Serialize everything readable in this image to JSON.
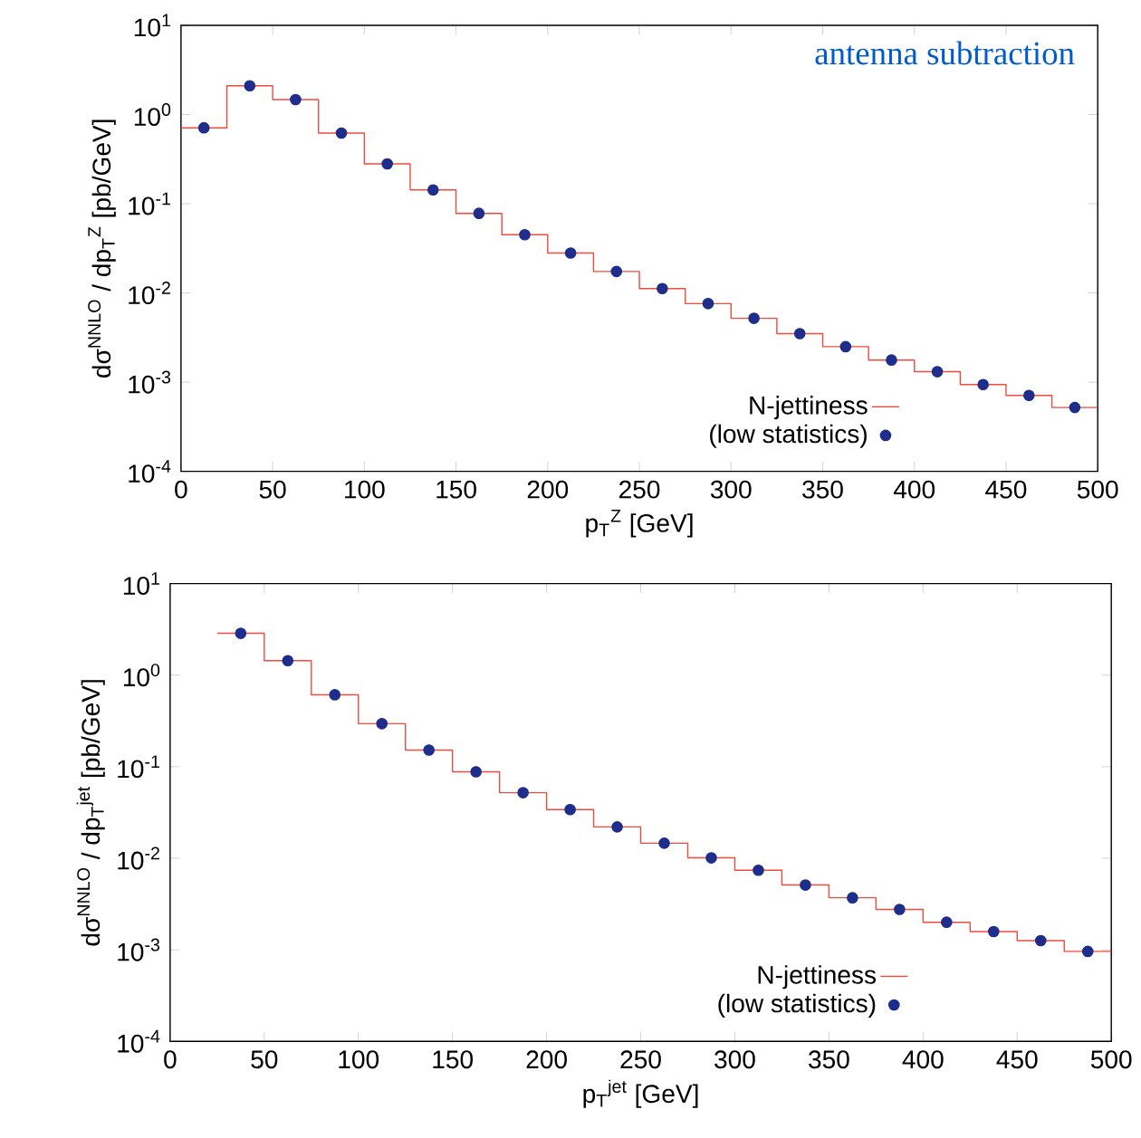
{
  "chart_data": [
    {
      "type": "step",
      "xlabel": "p$_{T}$$^{Z}$ [GeV]",
      "ylabel": "dσ$^{NNLO}$ / dp$_{T}$$^{Z}$ [pb/GeV]",
      "annotations": [
        "antenna subtraction"
      ],
      "log": "y",
      "xlim": [
        0,
        500
      ],
      "ylim": [
        0.0001,
        10
      ],
      "xticks": [
        0,
        50,
        100,
        150,
        200,
        250,
        300,
        350,
        400,
        450,
        500
      ],
      "yticks": [
        {
          "value": 0.0001,
          "label": "10$^{-4}$"
        },
        {
          "value": 0.001,
          "label": "10$^{-3}$"
        },
        {
          "value": 0.01,
          "label": "10$^{-2}$"
        },
        {
          "value": 0.1,
          "label": "10$^{-1}$"
        },
        {
          "value": 1,
          "label": "10$^{0}$"
        },
        {
          "value": 10,
          "label": "10$^{1}$"
        }
      ],
      "legend": "bottom right",
      "grid": false,
      "series": [
        {
          "name": "N-jettiness",
          "type": "histogram",
          "color": "#f04b3c",
          "bins": [
            0,
            25,
            50,
            75,
            100,
            125,
            150,
            175,
            200,
            225,
            250,
            275,
            300,
            325,
            350,
            375,
            400,
            425,
            450,
            475,
            500
          ],
          "values": [
            0.71,
            2.1,
            1.47,
            0.62,
            0.28,
            0.143,
            0.078,
            0.045,
            0.028,
            0.0174,
            0.0112,
            0.0076,
            0.0052,
            0.0035,
            0.0025,
            0.00177,
            0.00131,
            0.00094,
            0.00071,
            0.00052
          ]
        },
        {
          "name": "(low statistics)",
          "type": "scatter",
          "marker": "circle",
          "color": "#1f2d8c",
          "x": [
            12.5,
            37.5,
            62.5,
            87.5,
            112.5,
            137.5,
            162.5,
            187.5,
            212.5,
            237.5,
            262.5,
            287.5,
            312.5,
            337.5,
            362.5,
            387.5,
            412.5,
            437.5,
            462.5,
            487.5
          ],
          "values": [
            0.71,
            2.1,
            1.47,
            0.62,
            0.28,
            0.143,
            0.078,
            0.045,
            0.028,
            0.0174,
            0.0112,
            0.0076,
            0.0052,
            0.0035,
            0.0025,
            0.00177,
            0.00131,
            0.00094,
            0.00071,
            0.00052
          ]
        }
      ]
    },
    {
      "type": "step",
      "xlabel": "p$_{T}$$^{jet}$ [GeV]",
      "ylabel": "dσ$^{NNLO}$ / dp$_{T}$$^{jet}$ [pb/GeV]",
      "log": "y",
      "xlim": [
        0,
        500
      ],
      "ylim": [
        0.0001,
        10
      ],
      "xticks": [
        0,
        50,
        100,
        150,
        200,
        250,
        300,
        350,
        400,
        450,
        500
      ],
      "yticks": [
        {
          "value": 0.0001,
          "label": "10$^{-4}$"
        },
        {
          "value": 0.001,
          "label": "10$^{-3}$"
        },
        {
          "value": 0.01,
          "label": "10$^{-2}$"
        },
        {
          "value": 0.1,
          "label": "10$^{-1}$"
        },
        {
          "value": 1,
          "label": "10$^{0}$"
        },
        {
          "value": 10,
          "label": "10$^{1}$"
        }
      ],
      "legend": "bottom right",
      "grid": false,
      "series": [
        {
          "name": "N-jettiness",
          "type": "histogram",
          "color": "#f04b3c",
          "bins": [
            25,
            50,
            75,
            100,
            125,
            150,
            175,
            200,
            225,
            250,
            275,
            300,
            325,
            350,
            375,
            400,
            425,
            450,
            475,
            500
          ],
          "values": [
            2.86,
            1.44,
            0.61,
            0.295,
            0.152,
            0.088,
            0.052,
            0.034,
            0.022,
            0.0146,
            0.0101,
            0.0074,
            0.0051,
            0.0037,
            0.00276,
            0.002,
            0.00158,
            0.00126,
            0.00096
          ]
        },
        {
          "name": "(low statistics)",
          "type": "scatter",
          "marker": "circle",
          "color": "#1f2d8c",
          "x": [
            37.5,
            62.5,
            87.5,
            112.5,
            137.5,
            162.5,
            187.5,
            212.5,
            237.5,
            262.5,
            287.5,
            312.5,
            337.5,
            362.5,
            387.5,
            412.5,
            437.5,
            462.5,
            487.5
          ],
          "values": [
            2.86,
            1.44,
            0.61,
            0.295,
            0.152,
            0.088,
            0.052,
            0.034,
            0.022,
            0.0146,
            0.0101,
            0.0074,
            0.0051,
            0.0037,
            0.00276,
            0.002,
            0.00158,
            0.00126,
            0.00096
          ]
        }
      ]
    }
  ]
}
